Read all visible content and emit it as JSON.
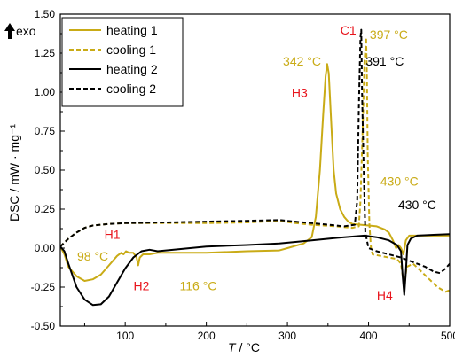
{
  "chart_data": {
    "type": "line",
    "xlabel_italic": "T",
    "xlabel_rest": " / °C",
    "ylabel": "DSC / mW · mg⁻¹",
    "exo_label": "exo",
    "xlim": [
      20,
      500
    ],
    "ylim": [
      -0.5,
      1.5
    ],
    "x_ticks": [
      "100",
      "200",
      "300",
      "400",
      "500"
    ],
    "x_tick_values": [
      100,
      200,
      300,
      400,
      500
    ],
    "y_ticks": [
      "-0.50",
      "-0.25",
      "0.00",
      "0.25",
      "0.50",
      "0.75",
      "1.00",
      "1.25",
      "1.50"
    ],
    "y_tick_values": [
      -0.5,
      -0.25,
      0,
      0.25,
      0.5,
      0.75,
      1.0,
      1.25,
      1.5
    ],
    "colors": {
      "gold": "#c9ab16",
      "black": "#000000",
      "red": "#e8141c"
    },
    "series": [
      {
        "name": "heating 1",
        "color": "#c9ab16",
        "dash": "solid",
        "points": [
          [
            20,
            0.01
          ],
          [
            25,
            -0.04
          ],
          [
            30,
            -0.12
          ],
          [
            40,
            -0.18
          ],
          [
            50,
            -0.21
          ],
          [
            60,
            -0.2
          ],
          [
            70,
            -0.17
          ],
          [
            80,
            -0.11
          ],
          [
            90,
            -0.05
          ],
          [
            95,
            -0.03
          ],
          [
            98,
            -0.04
          ],
          [
            101,
            -0.02
          ],
          [
            105,
            -0.03
          ],
          [
            110,
            -0.03
          ],
          [
            114,
            -0.06
          ],
          [
            116,
            -0.11
          ],
          [
            118,
            -0.06
          ],
          [
            122,
            -0.04
          ],
          [
            130,
            -0.04
          ],
          [
            140,
            -0.03
          ],
          [
            160,
            -0.03
          ],
          [
            200,
            -0.03
          ],
          [
            250,
            -0.02
          ],
          [
            290,
            -0.015
          ],
          [
            300,
            0.0
          ],
          [
            320,
            0.03
          ],
          [
            330,
            0.07
          ],
          [
            335,
            0.2
          ],
          [
            340,
            0.5
          ],
          [
            344,
            0.85
          ],
          [
            347,
            1.1
          ],
          [
            349,
            1.18
          ],
          [
            351,
            1.12
          ],
          [
            354,
            0.8
          ],
          [
            357,
            0.5
          ],
          [
            360,
            0.35
          ],
          [
            365,
            0.25
          ],
          [
            370,
            0.2
          ],
          [
            375,
            0.17
          ],
          [
            380,
            0.155
          ],
          [
            390,
            0.15
          ],
          [
            410,
            0.14
          ],
          [
            420,
            0.12
          ],
          [
            425,
            0.1
          ],
          [
            430,
            0.05
          ],
          [
            434,
            0.0
          ],
          [
            437,
            0.02
          ],
          [
            440,
            0.0
          ],
          [
            443,
            -0.04
          ],
          [
            446,
            0.05
          ],
          [
            450,
            0.08
          ],
          [
            470,
            0.08
          ],
          [
            500,
            0.08
          ]
        ]
      },
      {
        "name": "cooling 1",
        "color": "#c9ab16",
        "dash": "dashed",
        "points": [
          [
            20,
            0.01
          ],
          [
            30,
            0.06
          ],
          [
            40,
            0.1
          ],
          [
            50,
            0.13
          ],
          [
            60,
            0.145
          ],
          [
            80,
            0.155
          ],
          [
            100,
            0.16
          ],
          [
            150,
            0.16
          ],
          [
            200,
            0.16
          ],
          [
            250,
            0.165
          ],
          [
            290,
            0.175
          ],
          [
            310,
            0.16
          ],
          [
            330,
            0.15
          ],
          [
            360,
            0.14
          ],
          [
            380,
            0.13
          ],
          [
            388,
            0.14
          ],
          [
            390,
            0.3
          ],
          [
            393,
            0.8
          ],
          [
            395,
            1.2
          ],
          [
            397,
            1.35
          ],
          [
            398,
            1.1
          ],
          [
            399,
            0.6
          ],
          [
            401,
            0.15
          ],
          [
            403,
            0.0
          ],
          [
            405,
            -0.04
          ],
          [
            415,
            -0.05
          ],
          [
            425,
            -0.06
          ],
          [
            435,
            -0.07
          ],
          [
            440,
            -0.1
          ],
          [
            444,
            -0.25
          ],
          [
            447,
            -0.12
          ],
          [
            455,
            -0.1
          ],
          [
            465,
            -0.15
          ],
          [
            475,
            -0.2
          ],
          [
            485,
            -0.25
          ],
          [
            495,
            -0.28
          ],
          [
            500,
            -0.27
          ]
        ]
      },
      {
        "name": "heating 2",
        "color": "#000000",
        "dash": "solid",
        "points": [
          [
            20,
            0.01
          ],
          [
            25,
            -0.02
          ],
          [
            30,
            -0.1
          ],
          [
            40,
            -0.25
          ],
          [
            50,
            -0.33
          ],
          [
            60,
            -0.365
          ],
          [
            70,
            -0.36
          ],
          [
            80,
            -0.31
          ],
          [
            90,
            -0.22
          ],
          [
            100,
            -0.13
          ],
          [
            110,
            -0.06
          ],
          [
            120,
            -0.02
          ],
          [
            130,
            -0.01
          ],
          [
            140,
            -0.02
          ],
          [
            160,
            -0.01
          ],
          [
            200,
            0.01
          ],
          [
            250,
            0.02
          ],
          [
            290,
            0.03
          ],
          [
            330,
            0.05
          ],
          [
            370,
            0.07
          ],
          [
            395,
            0.08
          ],
          [
            410,
            0.07
          ],
          [
            425,
            0.05
          ],
          [
            435,
            0.02
          ],
          [
            440,
            -0.02
          ],
          [
            442,
            -0.18
          ],
          [
            444,
            -0.3
          ],
          [
            446,
            -0.15
          ],
          [
            448,
            0.02
          ],
          [
            452,
            0.06
          ],
          [
            460,
            0.08
          ],
          [
            480,
            0.085
          ],
          [
            500,
            0.09
          ]
        ]
      },
      {
        "name": "cooling 2",
        "color": "#000000",
        "dash": "dashed",
        "points": [
          [
            20,
            0.01
          ],
          [
            30,
            0.06
          ],
          [
            40,
            0.1
          ],
          [
            50,
            0.13
          ],
          [
            60,
            0.145
          ],
          [
            80,
            0.155
          ],
          [
            100,
            0.16
          ],
          [
            150,
            0.165
          ],
          [
            200,
            0.17
          ],
          [
            250,
            0.175
          ],
          [
            290,
            0.18
          ],
          [
            310,
            0.17
          ],
          [
            330,
            0.16
          ],
          [
            350,
            0.15
          ],
          [
            370,
            0.14
          ],
          [
            383,
            0.15
          ],
          [
            386,
            0.3
          ],
          [
            388,
            0.9
          ],
          [
            390,
            1.35
          ],
          [
            391,
            1.4
          ],
          [
            392,
            1.0
          ],
          [
            394,
            0.5
          ],
          [
            396,
            0.1
          ],
          [
            400,
            0.0
          ],
          [
            410,
            -0.02
          ],
          [
            425,
            -0.04
          ],
          [
            440,
            -0.06
          ],
          [
            450,
            -0.08
          ],
          [
            460,
            -0.1
          ],
          [
            470,
            -0.12
          ],
          [
            480,
            -0.15
          ],
          [
            488,
            -0.16
          ],
          [
            495,
            -0.13
          ],
          [
            500,
            -0.1
          ]
        ]
      }
    ],
    "annotations": [
      {
        "text": "C1",
        "color": "#e8141c",
        "x": 375,
        "y": 1.37
      },
      {
        "text": "397 °C",
        "color": "#c9ab16",
        "x": 425,
        "y": 1.34
      },
      {
        "text": "391 °C",
        "color": "#000000",
        "x": 420,
        "y": 1.17
      },
      {
        "text": "342 °C",
        "color": "#c9ab16",
        "x": 318,
        "y": 1.17
      },
      {
        "text": "H3",
        "color": "#e8141c",
        "x": 315,
        "y": 0.97
      },
      {
        "text": "430 °C",
        "color": "#c9ab16",
        "x": 438,
        "y": 0.4
      },
      {
        "text": "430 °C",
        "color": "#000000",
        "x": 460,
        "y": 0.25
      },
      {
        "text": "H1",
        "color": "#e8141c",
        "x": 84,
        "y": 0.06
      },
      {
        "text": "98 °C",
        "color": "#c9ab16",
        "x": 60,
        "y": -0.08
      },
      {
        "text": "H2",
        "color": "#e8141c",
        "x": 120,
        "y": -0.27
      },
      {
        "text": "116 °C",
        "color": "#c9ab16",
        "x": 190,
        "y": -0.27
      },
      {
        "text": "H4",
        "color": "#e8141c",
        "x": 420,
        "y": -0.33
      }
    ]
  }
}
